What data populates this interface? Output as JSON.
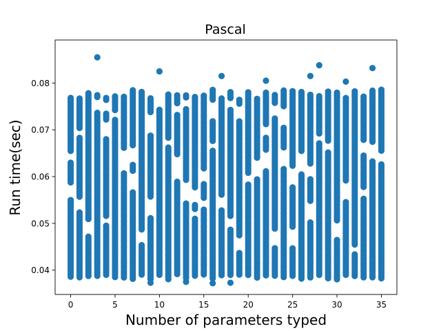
{
  "chart_data": {
    "type": "scatter",
    "title": "Pascal",
    "xlabel": "Number of parameters typed",
    "ylabel": "Run time(sec)",
    "xlim": [
      -1.75,
      36.75
    ],
    "ylim": [
      0.0348,
      0.0892
    ],
    "xticks": [
      0,
      5,
      10,
      15,
      20,
      25,
      30,
      35
    ],
    "yticks": [
      0.04,
      0.05,
      0.06,
      0.07,
      0.08
    ],
    "ytick_labels": [
      "0.04",
      "0.05",
      "0.06",
      "0.07",
      "0.08"
    ],
    "grid": false,
    "color": "#1f77b4",
    "x_range": [
      0,
      35
    ],
    "y_range_typical": [
      0.038,
      0.079
    ],
    "outliers": [
      {
        "x": 3,
        "y": 0.0855
      },
      {
        "x": 10,
        "y": 0.0825
      },
      {
        "x": 17,
        "y": 0.0815
      },
      {
        "x": 22,
        "y": 0.0805
      },
      {
        "x": 27,
        "y": 0.0815
      },
      {
        "x": 28,
        "y": 0.0838
      },
      {
        "x": 31,
        "y": 0.0803
      },
      {
        "x": 34,
        "y": 0.0832
      }
    ],
    "low_points": [
      {
        "x": 9,
        "y": 0.0373
      },
      {
        "x": 13,
        "y": 0.0375
      },
      {
        "x": 16,
        "y": 0.0372
      },
      {
        "x": 18,
        "y": 0.0373
      }
    ]
  }
}
